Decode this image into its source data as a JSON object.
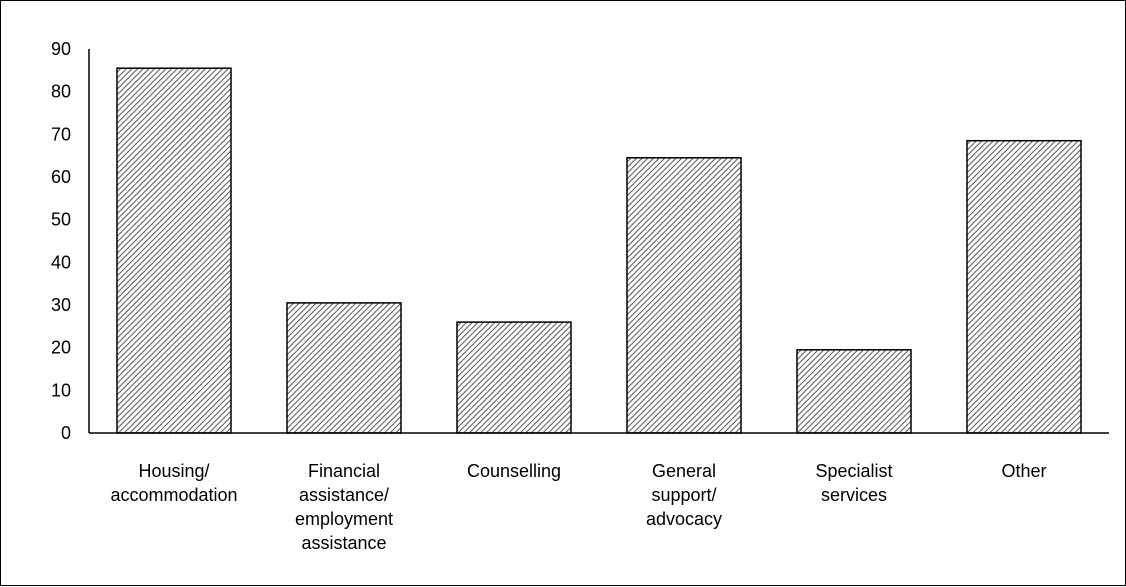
{
  "chart_data": {
    "type": "bar",
    "categories": [
      [
        "Housing/",
        "accommodation"
      ],
      [
        "Financial",
        "assistance/",
        "employment",
        "assistance"
      ],
      [
        "Counselling"
      ],
      [
        "General",
        "support/",
        "advocacy"
      ],
      [
        "Specialist",
        "services"
      ],
      [
        "Other"
      ]
    ],
    "values": [
      85.5,
      30.5,
      26,
      64.5,
      19.5,
      68.5
    ],
    "yticks": [
      "0",
      "10",
      "20",
      "30",
      "40",
      "50",
      "60",
      "70",
      "80",
      "90"
    ],
    "ylim": [
      0,
      90
    ],
    "title": "",
    "xlabel": "",
    "ylabel": "",
    "grid": false,
    "legend": "none",
    "colors": {
      "bar_fill_base": "#ffffff",
      "bar_hatch": "#555555",
      "axis": "#000000"
    }
  }
}
